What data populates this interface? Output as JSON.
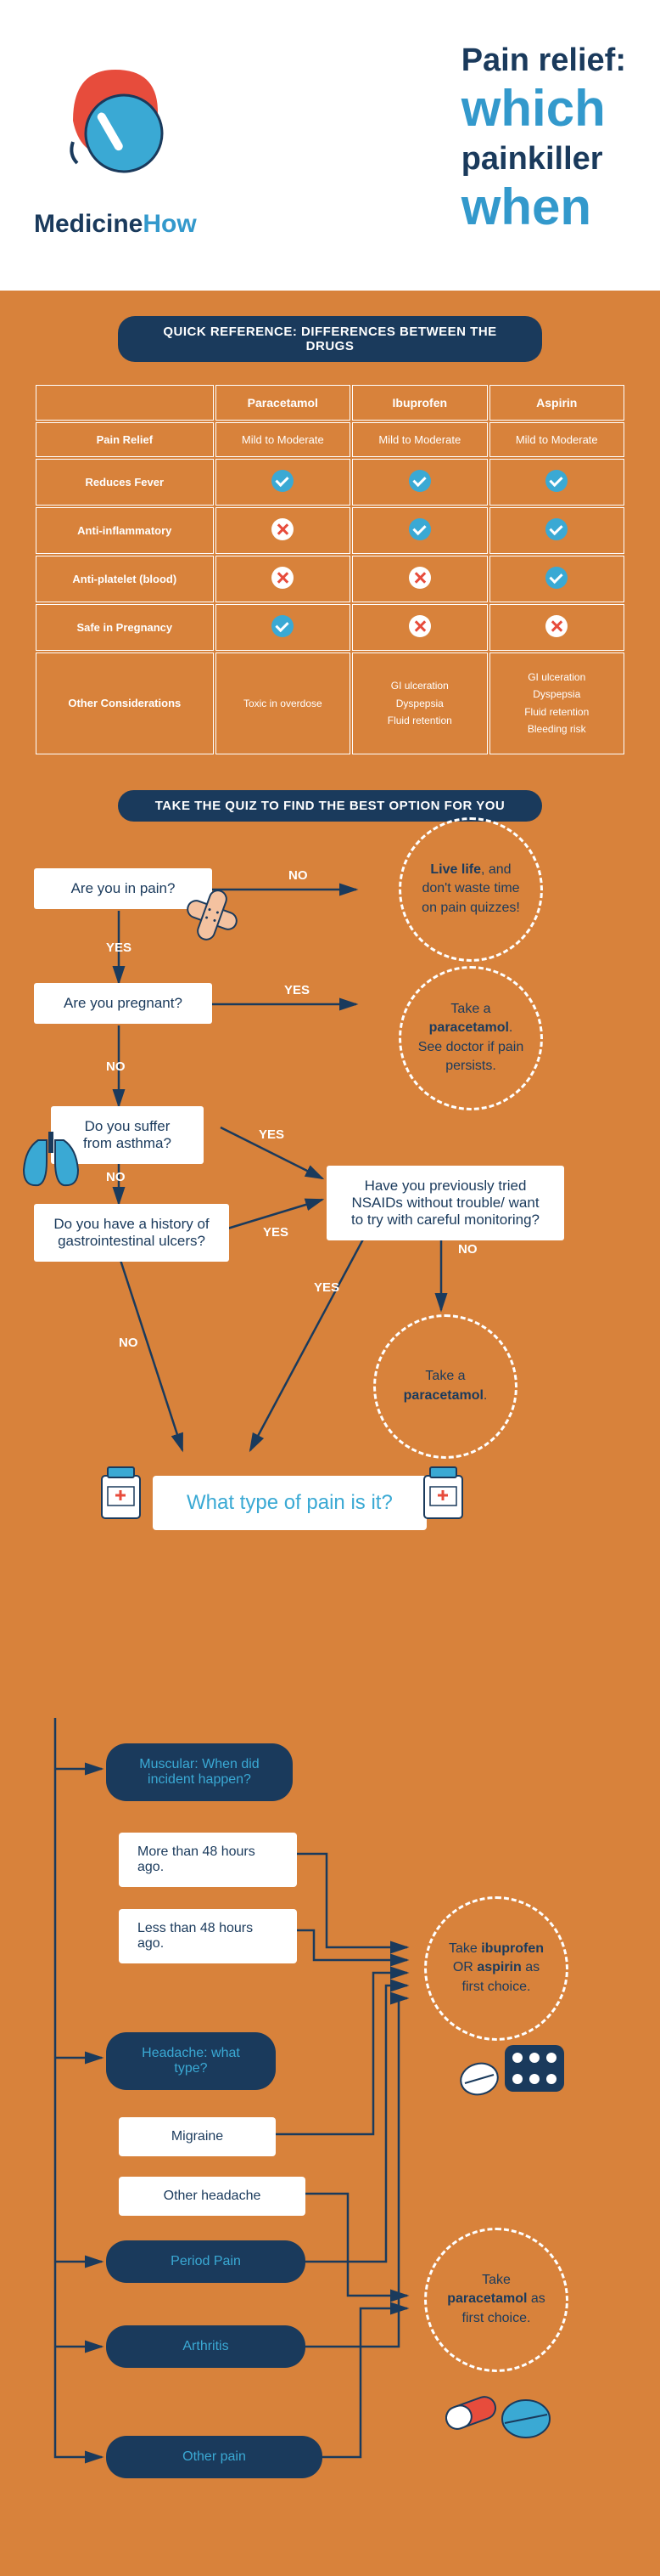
{
  "header": {
    "brand_a": "Medicine",
    "brand_b": "How",
    "title_line1": "Pain relief:",
    "title_line2": "which",
    "title_line3": "painkiller",
    "title_line4": "when"
  },
  "banner1": "QUICK REFERENCE: DIFFERENCES BETWEEN THE DRUGS",
  "table": {
    "cols": [
      "Paracetamol",
      "Ibuprofen",
      "Aspirin"
    ],
    "rows": [
      {
        "label": "Pain Relief",
        "cells": [
          "Mild to Moderate",
          "Mild to Moderate",
          "Mild to Moderate"
        ],
        "type": "text"
      },
      {
        "label": "Reduces Fever",
        "cells": [
          "check",
          "check",
          "check"
        ],
        "type": "icon"
      },
      {
        "label": "Anti-inflammatory",
        "cells": [
          "cross",
          "check",
          "check"
        ],
        "type": "icon"
      },
      {
        "label": "Anti-platelet (blood)",
        "cells": [
          "cross",
          "cross",
          "check"
        ],
        "type": "icon"
      },
      {
        "label": "Safe in Pregnancy",
        "cells": [
          "check",
          "cross",
          "cross"
        ],
        "type": "icon"
      },
      {
        "label": "Other Considerations",
        "cells": [
          "Toxic in overdose",
          "GI ulceration\nDyspepsia\nFluid retention",
          "GI ulceration\nDyspepsia\nFluid retention\nBleeding risk"
        ],
        "type": "consider"
      }
    ]
  },
  "banner2": "TAKE THE QUIZ TO FIND THE BEST OPTION FOR YOU",
  "flow": {
    "q1": "Are you in pain?",
    "q2": "Are you pregnant?",
    "q3": "Do you suffer from asthma?",
    "q4": "Do you have a history of gastrointestinal ulcers?",
    "q5": "Have you previously tried NSAIDs without trouble/ want to try with careful monitoring?",
    "r1_a": "Live life",
    "r1_b": ", and don't waste time on pain quizzes!",
    "r2_a": "Take a ",
    "r2_b": "paracetamol",
    "r2_c": ". See doctor if pain persists.",
    "r3_a": "Take a ",
    "r3_b": "paracetamol",
    "r3_c": ".",
    "yes": "YES",
    "no": "NO"
  },
  "paintype": "What type of pain is it?",
  "flow2": {
    "muscular": "Muscular: When did incident happen?",
    "more48": "More than 48 hours ago.",
    "less48": "Less than 48 hours ago.",
    "headache": "Headache: what type?",
    "migraine": "Migraine",
    "otherhead": "Other headache",
    "period": "Period Pain",
    "arthritis": "Arthritis",
    "otherpain": "Other pain",
    "res1_a": "Take ",
    "res1_b": "ibuprofen",
    "res1_c": " OR ",
    "res1_d": "aspirin",
    "res1_e": " as first choice.",
    "res2_a": "Take ",
    "res2_b": "paracetamol",
    "res2_c": " as first choice."
  },
  "colors": {
    "bg": "#d8823b",
    "navy": "#1a3a5c",
    "teal": "#3aa9d4",
    "blue": "#3399cc"
  }
}
